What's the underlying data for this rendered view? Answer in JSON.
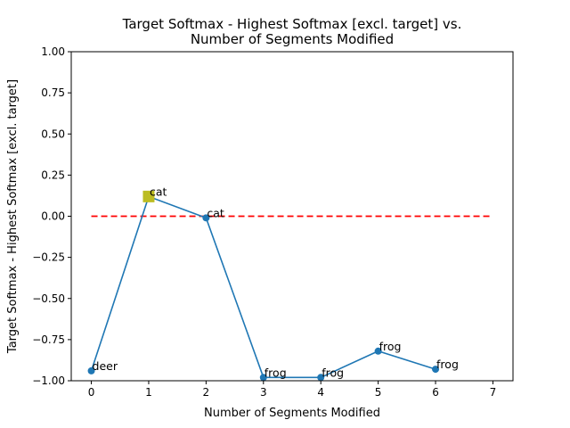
{
  "chart_data": {
    "type": "line",
    "title_line1": "Target Softmax - Highest Softmax [excl. target] vs.",
    "title_line2": "Number of Segments Modified",
    "xlabel": "Number of Segments Modified",
    "ylabel": "Target Softmax - Highest Softmax [excl. target]",
    "xlim": [
      -0.35,
      7.35
    ],
    "ylim": [
      -1.0,
      1.0
    ],
    "xticks": [
      0,
      1,
      2,
      3,
      4,
      5,
      6,
      7
    ],
    "xtick_labels": [
      "0",
      "1",
      "2",
      "3",
      "4",
      "5",
      "6",
      "7"
    ],
    "yticks": [
      -1.0,
      -0.75,
      -0.5,
      -0.25,
      0.0,
      0.25,
      0.5,
      0.75,
      1.0
    ],
    "ytick_labels": [
      "−1.00",
      "−0.75",
      "−0.50",
      "−0.25",
      "0.00",
      "0.25",
      "0.50",
      "0.75",
      "1.00"
    ],
    "grid": false,
    "series": [
      {
        "color": "#1f77b4",
        "x": [
          0,
          1,
          2,
          3,
          4,
          5,
          6
        ],
        "y": [
          -0.94,
          0.12,
          -0.01,
          -0.98,
          -0.98,
          -0.82,
          -0.93
        ],
        "labels": [
          "deer",
          "cat",
          "cat",
          "frog",
          "frog",
          "frog",
          "frog"
        ]
      }
    ],
    "highlight": {
      "x": 1,
      "y": 0.12,
      "color": "#bcbd22",
      "marker": "square"
    },
    "reference_line": {
      "y": 0.0,
      "x_range": [
        0,
        7
      ],
      "color": "#ff0000",
      "style": "dashed"
    }
  }
}
